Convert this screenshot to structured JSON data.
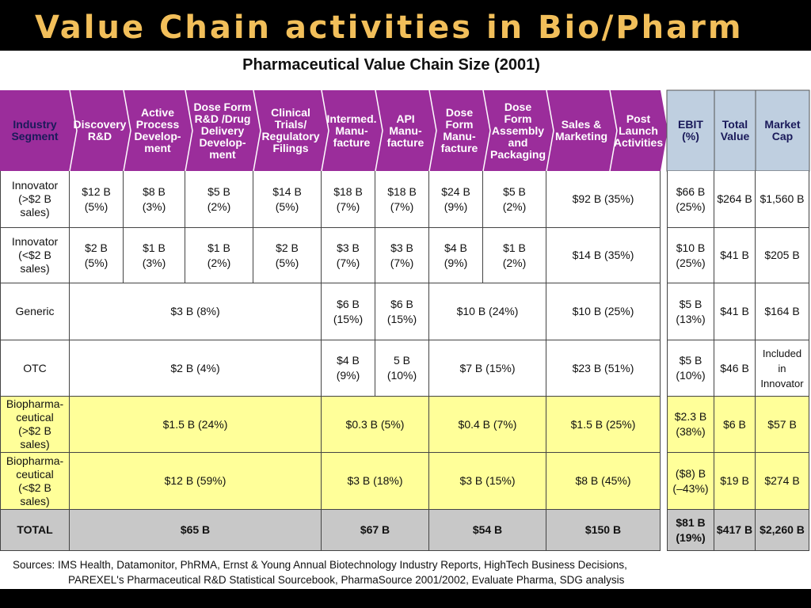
{
  "slide": {
    "title": "Value Chain activities in Bio/Pharm"
  },
  "table": {
    "title": "Pharmaceutical Value Chain Size (2001)",
    "segment_header": "Industry\nSegment",
    "stages": [
      "Discovery\nR&D",
      "Active\nProcess\nDevelop-\nment",
      "Dose Form\nR&D /Drug\nDelivery\nDevelop-\nment",
      "Clinical\nTrials/\nRegulatory\nFilings",
      "Intermed.\nManu-\nfacture",
      "API\nManu-\nfacture",
      "Dose\nForm\nManu-\nfacture",
      "Dose Form\nAssembly\nand\nPackaging",
      "Sales &\nMarketing",
      "Post\nLaunch\nActivities"
    ],
    "summary_headers": [
      "EBIT\n(%)",
      "Total\nValue",
      "Market\nCap"
    ],
    "rows": [
      {
        "segment": "Innovator\n(>$2 B\nsales)",
        "fill": "#ffffff",
        "cells": [
          {
            "text": "$12 B\n(5%)",
            "span": 1
          },
          {
            "text": "$8 B\n(3%)",
            "span": 1
          },
          {
            "text": "$5 B\n(2%)",
            "span": 1
          },
          {
            "text": "$14 B\n(5%)",
            "span": 1
          },
          {
            "text": "$18 B\n(7%)",
            "span": 1
          },
          {
            "text": "$18 B\n(7%)",
            "span": 1
          },
          {
            "text": "$24 B\n(9%)",
            "span": 1
          },
          {
            "text": "$5 B\n(2%)",
            "span": 1
          },
          {
            "text": "$92 B (35%)",
            "span": 2
          }
        ],
        "summary": [
          "$66 B\n(25%)",
          "$264 B",
          "$1,560 B"
        ]
      },
      {
        "segment": "Innovator\n(<$2 B\nsales)",
        "fill": "#ffffff",
        "cells": [
          {
            "text": "$2 B\n(5%)",
            "span": 1
          },
          {
            "text": "$1 B\n(3%)",
            "span": 1
          },
          {
            "text": "$1 B\n(2%)",
            "span": 1
          },
          {
            "text": "$2 B\n(5%)",
            "span": 1
          },
          {
            "text": "$3 B\n(7%)",
            "span": 1
          },
          {
            "text": "$3 B\n(7%)",
            "span": 1
          },
          {
            "text": "$4 B\n(9%)",
            "span": 1
          },
          {
            "text": "$1 B\n(2%)",
            "span": 1
          },
          {
            "text": "$14 B (35%)",
            "span": 2
          }
        ],
        "summary": [
          "$10 B\n(25%)",
          "$41 B",
          "$205 B"
        ]
      },
      {
        "segment": "Generic",
        "fill": "#ffffff",
        "cells": [
          {
            "text": "$3 B (8%)",
            "span": 4
          },
          {
            "text": "$6 B\n(15%)",
            "span": 1
          },
          {
            "text": "$6 B\n(15%)",
            "span": 1
          },
          {
            "text": "$10 B (24%)",
            "span": 2
          },
          {
            "text": "$10 B (25%)",
            "span": 2
          }
        ],
        "summary": [
          "$5 B\n(13%)",
          "$41 B",
          "$164 B"
        ]
      },
      {
        "segment": "OTC",
        "fill": "#ffffff",
        "cells": [
          {
            "text": "$2 B (4%)",
            "span": 4
          },
          {
            "text": "$4 B\n(9%)",
            "span": 1
          },
          {
            "text": "5 B\n(10%)",
            "span": 1
          },
          {
            "text": "$7 B (15%)",
            "span": 2
          },
          {
            "text": "$23 B (51%)",
            "span": 2
          }
        ],
        "summary": [
          "$5 B\n(10%)",
          "$46 B",
          "Included\nin\nInnovator"
        ]
      },
      {
        "segment": "Biopharma-\nceutical\n(>$2 B\nsales)",
        "fill": "#ffff99",
        "cells": [
          {
            "text": "$1.5 B (24%)",
            "span": 4
          },
          {
            "text": "$0.3 B (5%)",
            "span": 2
          },
          {
            "text": "$0.4 B (7%)",
            "span": 2
          },
          {
            "text": "$1.5 B (25%)",
            "span": 2
          }
        ],
        "summary": [
          "$2.3 B\n(38%)",
          "$6 B",
          "$57 B"
        ]
      },
      {
        "segment": "Biopharma-\nceutical\n(<$2 B\nsales)",
        "fill": "#ffff99",
        "cells": [
          {
            "text": "$12 B (59%)",
            "span": 4
          },
          {
            "text": "$3 B (18%)",
            "span": 2
          },
          {
            "text": "$3 B (15%)",
            "span": 2
          },
          {
            "text": "$8 B (45%)",
            "span": 2
          }
        ],
        "summary": [
          "($8) B\n(–43%)",
          "$19 B",
          "$274 B"
        ]
      },
      {
        "segment": "TOTAL",
        "fill": "#c8c8c8",
        "total": true,
        "cells": [
          {
            "text": "$65 B",
            "span": 4
          },
          {
            "text": "$67 B",
            "span": 2
          },
          {
            "text": "$54 B",
            "span": 2
          },
          {
            "text": "$150 B",
            "span": 2
          }
        ],
        "summary": [
          "$81 B\n(19%)",
          "$417 B",
          "$2,260 B"
        ]
      }
    ],
    "sources": [
      "Sources: IMS Health, Datamonitor, PhRMA, Ernst & Young Annual Biotechnology Industry Reports, HighTech Business Decisions,",
      "PAREXEL's Pharmaceutical R&D Statistical Sourcebook, PharmaSource 2001/2002, Evaluate Pharma, SDG analysis"
    ]
  },
  "colors": {
    "slide_background": "#000000",
    "title_text": "#f2bf5a",
    "stage_header_fill": "#9b2d9b",
    "summary_header_fill": "#bfcfe0",
    "white_row_fill": "#ffffff",
    "biopharma_row_fill": "#ffff99",
    "total_row_fill": "#c8c8c8"
  }
}
